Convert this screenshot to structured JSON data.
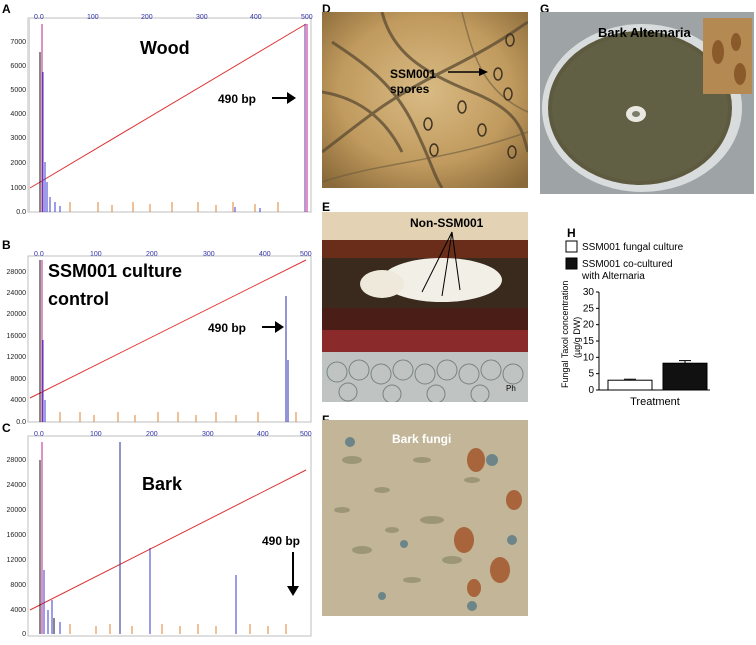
{
  "panel_labels": [
    "A",
    "B",
    "C",
    "D",
    "E",
    "F",
    "G",
    "H"
  ],
  "chromatograms": [
    {
      "label": "A",
      "title": "Wood",
      "arrow_label": "490 bp",
      "x_ticks": [
        "0.0",
        "100",
        "200",
        "300",
        "400",
        "500"
      ],
      "y_ticks": [
        "0.0",
        "1000",
        "2000",
        "3000",
        "4000",
        "5000",
        "6000",
        "7000"
      ],
      "ylim": [
        0,
        7900
      ]
    },
    {
      "label": "B",
      "title_line1": "SSM001 culture",
      "title_line2": "control",
      "arrow_label": "490 bp",
      "x_ticks": [
        "0.0",
        "100",
        "200",
        "300",
        "400",
        "500"
      ],
      "y_ticks": [
        "0.0",
        "4000",
        "8000",
        "12000",
        "16000",
        "20000",
        "24000",
        "28000"
      ],
      "ylim": [
        0,
        31000
      ]
    },
    {
      "label": "C",
      "title": "Bark",
      "arrow_label": "490 bp",
      "x_ticks": [
        "0.0",
        "100",
        "200",
        "300",
        "400",
        "500"
      ],
      "y_ticks": [
        "0",
        "4000",
        "8000",
        "12000",
        "16000",
        "20000",
        "24000",
        "28000"
      ],
      "ylim": [
        0,
        31000
      ]
    }
  ],
  "micrographs": {
    "D": {
      "label_line1": "SSM001",
      "label_line2": "spores"
    },
    "E": {
      "label": "Non-SSM001",
      "corner": "Ph"
    },
    "F": {
      "label": "Bark fungi"
    },
    "G": {
      "label": "Bark Alternaria"
    }
  },
  "chart_data": {
    "type": "bar",
    "categories": [
      "SSM001 fungal culture",
      "SSM001 co-cultured with Alternaria"
    ],
    "values": [
      3.0,
      8.2
    ],
    "errors": [
      0.3,
      0.8
    ],
    "colors": [
      "#ffffff",
      "#111111"
    ],
    "ylabel_line1": "Fungal Taxol concentration",
    "ylabel_line2": "(µg/g DW)",
    "xlabel": "Treatment",
    "ylim": [
      0,
      30
    ],
    "y_ticks": [
      "0",
      "5",
      "10",
      "15",
      "20",
      "25",
      "30"
    ],
    "legend": [
      {
        "text": "SSM001 fungal culture"
      },
      {
        "text_line1": "SSM001 co-cultured",
        "text_line2": "with Alternaria"
      }
    ]
  }
}
